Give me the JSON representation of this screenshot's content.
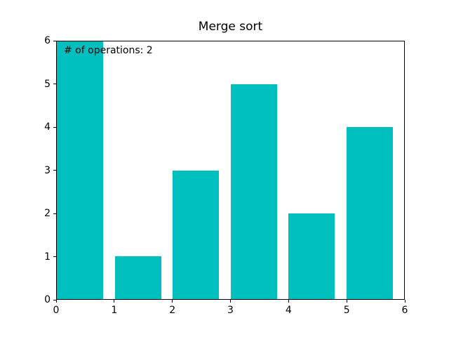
{
  "figure": {
    "title": "Merge sort",
    "annotation": "# of operations: 2",
    "background_color": "#ffffff",
    "text_color": "#000000"
  },
  "chart_data": {
    "type": "bar",
    "title": "Merge sort",
    "annotation": "# of operations: 2",
    "x": [
      0,
      1,
      2,
      3,
      4,
      5
    ],
    "values": [
      6,
      1,
      3,
      5,
      2,
      4
    ],
    "bar_color": "#00bfbf",
    "bar_width": 0.8,
    "bar_align": "edge",
    "xlabel": "",
    "ylabel": "",
    "xlim": [
      0,
      6
    ],
    "ylim": [
      0,
      6
    ],
    "xticks": [
      "0",
      "1",
      "2",
      "3",
      "4",
      "5",
      "6"
    ],
    "yticks": [
      "0",
      "1",
      "2",
      "3",
      "4",
      "5",
      "6"
    ],
    "grid": false,
    "legend_position": "none"
  }
}
